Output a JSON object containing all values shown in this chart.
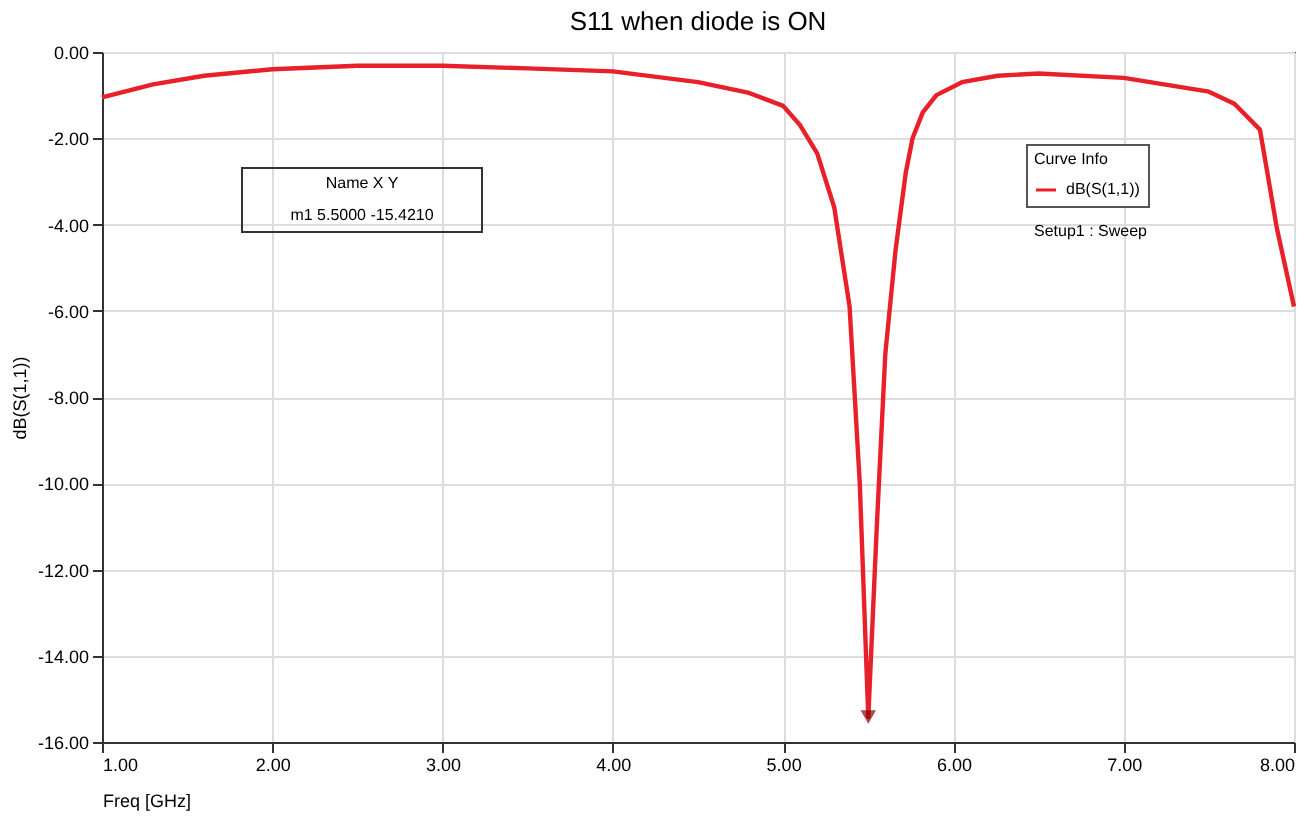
{
  "chart_data": {
    "type": "line",
    "title": "S11 when diode is ON",
    "xlabel": "Freq [GHz]",
    "ylabel": "dB(S(1,1))",
    "legend_title": "Curve Info",
    "xlim": [
      1,
      8
    ],
    "xticks": [
      {
        "value": 1,
        "label": "1.00"
      },
      {
        "value": 2,
        "label": "2.00"
      },
      {
        "value": 3,
        "label": "3.00"
      },
      {
        "value": 4,
        "label": "4.00"
      },
      {
        "value": 5,
        "label": "5.00"
      },
      {
        "value": 6,
        "label": "6.00"
      },
      {
        "value": 7,
        "label": "7.00"
      },
      {
        "value": 8,
        "label": "8.00"
      }
    ],
    "ylim": [
      -16,
      0
    ],
    "yticks": [
      {
        "value": -16,
        "label": "-16.00"
      },
      {
        "value": -14,
        "label": "-14.00"
      },
      {
        "value": -12,
        "label": "-12.00"
      },
      {
        "value": -10,
        "label": "-10.00"
      },
      {
        "value": -8,
        "label": "-8.00"
      },
      {
        "value": -6,
        "label": "-6.00"
      },
      {
        "value": -4,
        "label": "-4.00"
      },
      {
        "value": -2,
        "label": "-2.00"
      },
      {
        "value": 0,
        "label": "0.00"
      }
    ],
    "grid": true,
    "legend": "top right",
    "line_style": "solid",
    "series": [
      {
        "name": "dB(S(1,1))",
        "color": "#e8202a",
        "marker": "none",
        "x": [
          1.0,
          1.3,
          1.6,
          2.0,
          2.5,
          3.0,
          3.5,
          4.0,
          4.5,
          4.8,
          5.0,
          5.1,
          5.2,
          5.3,
          5.39,
          5.45,
          5.5,
          5.55,
          5.6,
          5.66,
          5.72,
          5.76,
          5.82,
          5.9,
          6.05,
          6.26,
          6.5,
          7.0,
          7.5,
          7.65,
          7.8,
          7.9,
          8.0
        ],
        "values": [
          -1.05,
          -0.75,
          -0.55,
          -0.4,
          -0.32,
          -0.32,
          -0.38,
          -0.45,
          -0.7,
          -0.95,
          -1.25,
          -1.7,
          -2.35,
          -3.6,
          -5.9,
          -10.0,
          -15.421,
          -11.0,
          -7.0,
          -4.6,
          -2.8,
          -2.0,
          -1.4,
          -1.0,
          -0.7,
          -0.55,
          -0.5,
          -0.6,
          -0.92,
          -1.2,
          -1.8,
          -4.1,
          -5.9
        ]
      },
      {
        "type": "scatter",
        "color": "#8b0000",
        "marker": "triangle",
        "x": [
          5.5
        ],
        "values": [
          -15.421
        ]
      }
    ],
    "annotations": [
      "Name   X   Y",
      "m1   5.5000   -15.4210",
      "Setup1 : Sweep"
    ]
  }
}
